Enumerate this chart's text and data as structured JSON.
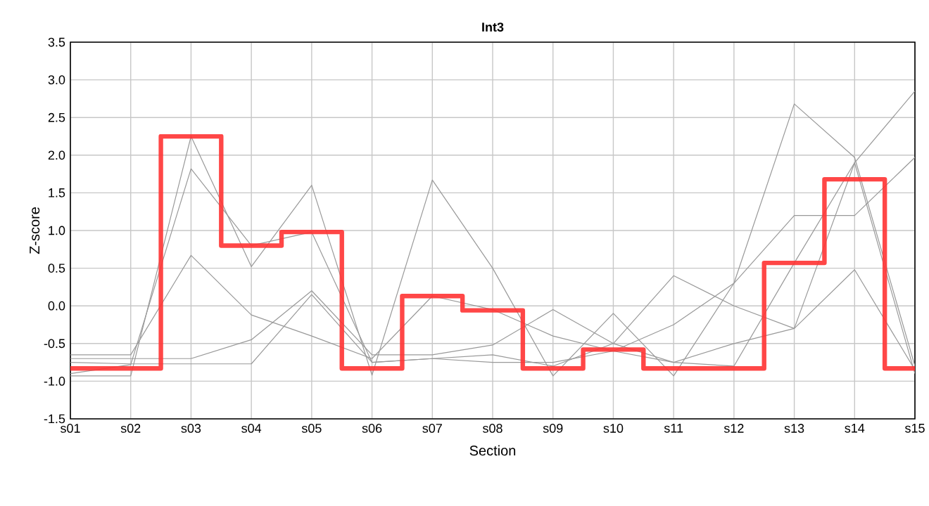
{
  "chart_data": {
    "type": "line",
    "title": "Int3",
    "xlabel": "Section",
    "ylabel": "Z-score",
    "categories": [
      "s01",
      "s02",
      "s03",
      "s04",
      "s05",
      "s06",
      "s07",
      "s08",
      "s09",
      "s10",
      "s11",
      "s12",
      "s13",
      "s14",
      "s15"
    ],
    "series": [
      {
        "color": "#999999",
        "values": [
          -0.93,
          -0.93,
          2.25,
          0.52,
          1.6,
          -0.92,
          1.67,
          0.5,
          -0.93,
          -0.1,
          -0.93,
          0.3,
          2.68,
          1.97,
          -0.8
        ]
      },
      {
        "color": "#999999",
        "values": [
          -0.9,
          -0.78,
          1.82,
          0.8,
          0.98,
          -0.75,
          -0.7,
          -0.65,
          -0.8,
          -0.5,
          0.4,
          0.0,
          -0.3,
          1.9,
          -0.9
        ]
      },
      {
        "color": "#999999",
        "values": [
          -0.65,
          -0.65,
          0.67,
          -0.12,
          -0.4,
          -0.7,
          0.13,
          -0.05,
          -0.4,
          -0.6,
          -0.25,
          0.3,
          1.2,
          1.2,
          1.97
        ]
      },
      {
        "color": "#999999",
        "values": [
          -0.7,
          -0.7,
          -0.7,
          -0.45,
          0.2,
          -0.65,
          -0.65,
          -0.52,
          -0.05,
          -0.5,
          -0.75,
          -0.5,
          -0.3,
          0.48,
          -0.85
        ]
      },
      {
        "color": "#999999",
        "values": [
          -0.75,
          -0.77,
          -0.77,
          -0.77,
          0.15,
          -0.75,
          -0.7,
          -0.75,
          -0.75,
          -0.6,
          -0.75,
          -0.8,
          0.57,
          1.9,
          2.85
        ]
      },
      {
        "type": "step",
        "color": "#ff3333",
        "values": [
          -0.83,
          -0.83,
          2.25,
          0.8,
          0.98,
          -0.83,
          0.13,
          -0.06,
          -0.83,
          -0.58,
          -0.83,
          -0.83,
          0.57,
          1.68,
          -0.83
        ]
      }
    ],
    "ylim": [
      -1.5,
      3.5
    ],
    "yticks": [
      {
        "value": -1.5,
        "label": "-1.5"
      },
      {
        "value": -1.0,
        "label": "-1.0"
      },
      {
        "value": -0.5,
        "label": "-0.5"
      },
      {
        "value": 0,
        "label": "0.0"
      },
      {
        "value": 0.5,
        "label": "0.5"
      },
      {
        "value": 1.0,
        "label": "1.0"
      },
      {
        "value": 1.5,
        "label": "1.5"
      },
      {
        "value": 2.0,
        "label": "2.0"
      },
      {
        "value": 2.5,
        "label": "2.5"
      },
      {
        "value": 3.0,
        "label": "3.0"
      },
      {
        "value": 3.5,
        "label": "3.5"
      }
    ],
    "grid": true
  }
}
